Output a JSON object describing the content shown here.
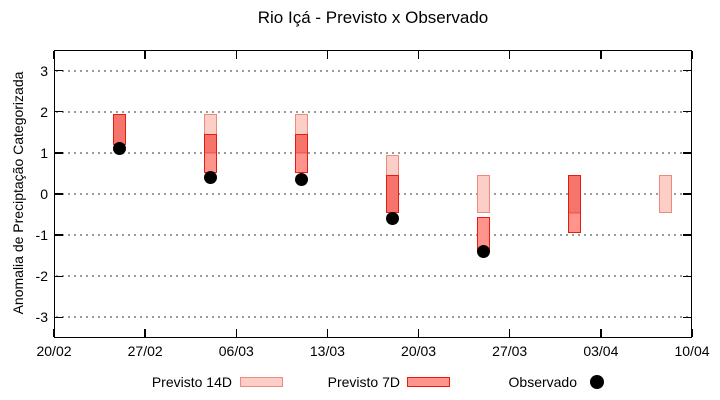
{
  "chart_data": {
    "type": "candlestick-forecast-bars",
    "title": "Rio Içá - Previsto x Observado",
    "ylabel": "Anomalia de Preciptação Categorizada",
    "xlabel": "",
    "ylim": [
      -3.5,
      3.5
    ],
    "yticks": [
      3,
      2,
      1,
      0,
      -1,
      -2,
      -3
    ],
    "grid": true,
    "legend_position": "bottom",
    "xticks": [
      {
        "label": "20/02",
        "day": 0
      },
      {
        "label": "27/02",
        "day": 7
      },
      {
        "label": "06/03",
        "day": 14
      },
      {
        "label": "13/03",
        "day": 21
      },
      {
        "label": "20/03",
        "day": 28
      },
      {
        "label": "27/03",
        "day": 35
      },
      {
        "label": "03/04",
        "day": 42
      },
      {
        "label": "10/04",
        "day": 49
      }
    ],
    "groups": [
      {
        "date": "25/02",
        "day": 5,
        "previsto_14d": [
          1.2,
          1.95
        ],
        "previsto_7d": [
          1.2,
          1.95
        ],
        "observado": 1.1
      },
      {
        "date": "04/03",
        "day": 12,
        "previsto_14d": [
          1.0,
          1.95
        ],
        "previsto_7d": [
          0.5,
          1.45
        ],
        "observado": 0.4
      },
      {
        "date": "11/03",
        "day": 19,
        "previsto_14d": [
          1.0,
          1.95
        ],
        "previsto_7d": [
          0.5,
          1.45
        ],
        "observado": 0.35
      },
      {
        "date": "18/03",
        "day": 26,
        "previsto_14d": [
          -0.45,
          0.95
        ],
        "previsto_7d": [
          -0.45,
          0.45
        ],
        "observado": -0.6
      },
      {
        "date": "25/03",
        "day": 33,
        "previsto_14d": [
          -0.45,
          0.45
        ],
        "previsto_7d": [
          -1.4,
          -0.55
        ],
        "observado": -1.4
      },
      {
        "date": "01/04",
        "day": 40,
        "previsto_14d": [
          -0.45,
          0.45
        ],
        "previsto_7d": [
          -0.95,
          0.45
        ],
        "observado": null
      },
      {
        "date": "08/04",
        "day": 47,
        "previsto_14d": [
          -0.45,
          0.45
        ],
        "previsto_7d": null,
        "observado": null
      }
    ]
  },
  "legend": {
    "items": [
      {
        "label": "Previsto 14D"
      },
      {
        "label": "Previsto 7D"
      },
      {
        "label": "Observado"
      }
    ]
  },
  "colors": {
    "forecast14_fill": "#fbcfc8",
    "forecast14_border": "#f0897b",
    "forecast7_fill": "#fe948c",
    "forecast7_fill_over14": "#f5746b",
    "forecast7_border": "#e81b12",
    "forecast7_divider": "#ee6157",
    "observed": "#000000",
    "grid": "#9b9b9b",
    "axis": "#000000",
    "text": "#000000"
  }
}
